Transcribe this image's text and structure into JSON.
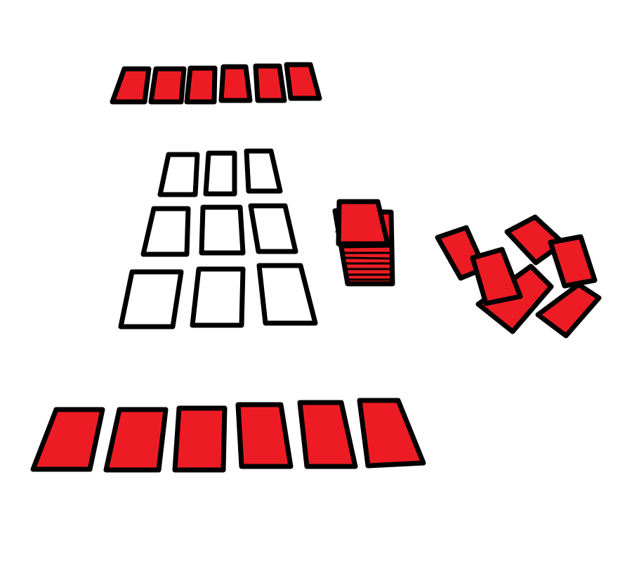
{
  "colors": {
    "card_red": "#ED1C24",
    "outline": "#000000",
    "slot_fill": "#FFFFFF",
    "background": "#FFFFFF"
  },
  "opponent_hand": {
    "card_count": 6,
    "face": "down"
  },
  "board_grid": {
    "rows": 3,
    "columns": 3,
    "state": "empty"
  },
  "draw_pile": {
    "face": "down"
  },
  "discard_pile": {
    "card_count": 7,
    "face": "down",
    "arrangement": "scattered"
  },
  "player_hand": {
    "card_count": 6,
    "face": "down"
  }
}
